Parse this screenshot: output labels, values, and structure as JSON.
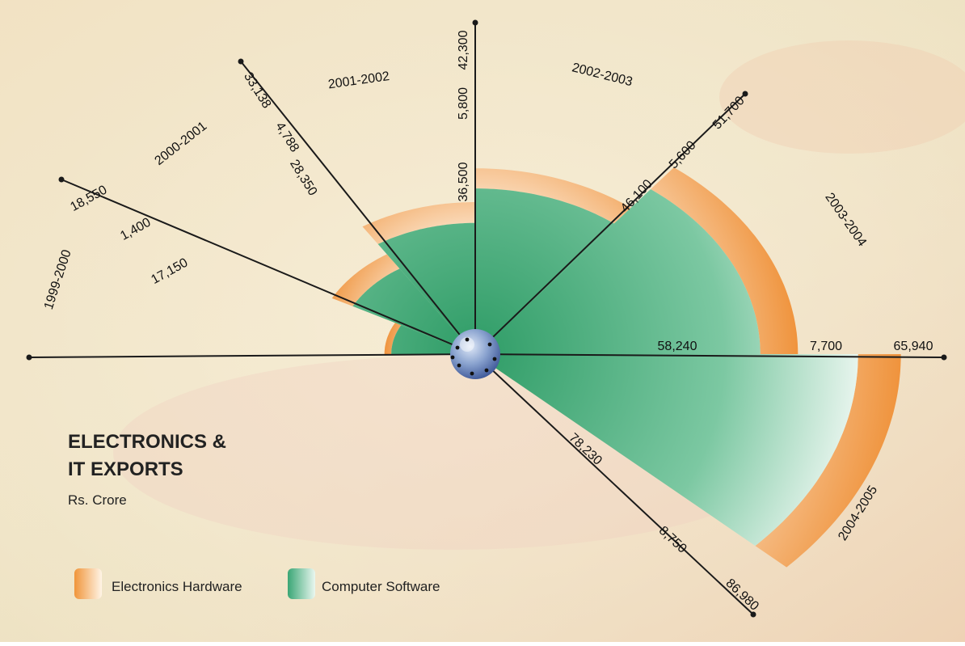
{
  "chart_data": {
    "type": "polar-area",
    "title_line1": "ELECTRONICS &",
    "title_line2": "IT EXPORTS",
    "unit": "Rs. Crore",
    "legend": [
      {
        "name": "Electronics Hardware",
        "color": "#f0953a"
      },
      {
        "name": "Computer Software",
        "color": "#2ea06a"
      }
    ],
    "categories": [
      "1999-2000",
      "2000-2001",
      "2001-2002",
      "2002-2003",
      "2003-2004",
      "2004-2005"
    ],
    "series": [
      {
        "name": "Electronics Hardware",
        "values": [
          1400,
          4788,
          5800,
          5600,
          7700,
          8750
        ]
      },
      {
        "name": "Computer Software",
        "values": [
          17150,
          28350,
          36500,
          46100,
          58240,
          78230
        ]
      }
    ],
    "totals": [
      18550,
      33138,
      42300,
      51700,
      65940,
      86980
    ],
    "labels": {
      "hardware": [
        "1,400",
        "4,788",
        "5,800",
        "5,600",
        "7,700",
        "8,750"
      ],
      "software": [
        "17,150",
        "28,350",
        "36,500",
        "46,100",
        "58,240",
        "78,230"
      ],
      "totals": [
        "18,550",
        "33,138",
        "42,300",
        "51,700",
        "65,940",
        "86,980"
      ]
    }
  }
}
